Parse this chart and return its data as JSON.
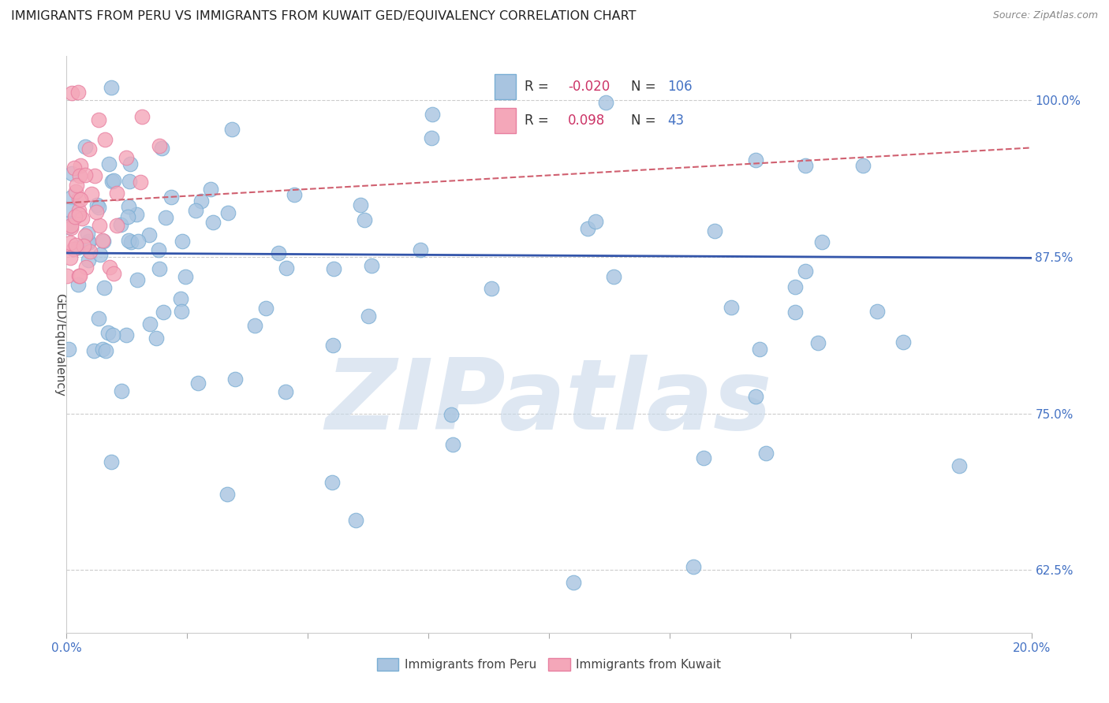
{
  "title": "IMMIGRANTS FROM PERU VS IMMIGRANTS FROM KUWAIT GED/EQUIVALENCY CORRELATION CHART",
  "source": "Source: ZipAtlas.com",
  "ylabel": "GED/Equivalency",
  "ytick_values": [
    0.625,
    0.75,
    0.875,
    1.0
  ],
  "ytick_labels": [
    "62.5%",
    "75.0%",
    "87.5%",
    "100.0%"
  ],
  "xtick_values": [
    0.0,
    0.025,
    0.05,
    0.075,
    0.1,
    0.125,
    0.15,
    0.175,
    0.2
  ],
  "xtick_labels_show": [
    "0.0%",
    "",
    "",
    "",
    "",
    "",
    "",
    "",
    "20.0%"
  ],
  "xmin": 0.0,
  "xmax": 0.2,
  "ymin": 0.575,
  "ymax": 1.035,
  "blue_R": -0.02,
  "blue_N": 106,
  "pink_R": 0.098,
  "pink_N": 43,
  "blue_color": "#a8c4e0",
  "blue_edge": "#7aaed4",
  "pink_color": "#f4a7b9",
  "pink_edge": "#e87fa0",
  "blue_line_color": "#3355aa",
  "pink_line_color": "#d06070",
  "legend_label_blue": "Immigrants from Peru",
  "legend_label_pink": "Immigrants from Kuwait",
  "watermark": "ZIPatlas",
  "watermark_color": "#c8d8ea",
  "background_color": "#ffffff",
  "grid_color": "#cccccc",
  "title_color": "#222222",
  "axis_label_color": "#444444",
  "tick_color": "#4472c4",
  "source_color": "#888888",
  "legend_text_color": "#333333",
  "legend_R_color": "#cc3366",
  "legend_N_color": "#4472c4",
  "blue_trend_y0": 0.878,
  "blue_trend_y1": 0.874,
  "pink_trend_y0": 0.918,
  "pink_trend_y1": 0.962
}
